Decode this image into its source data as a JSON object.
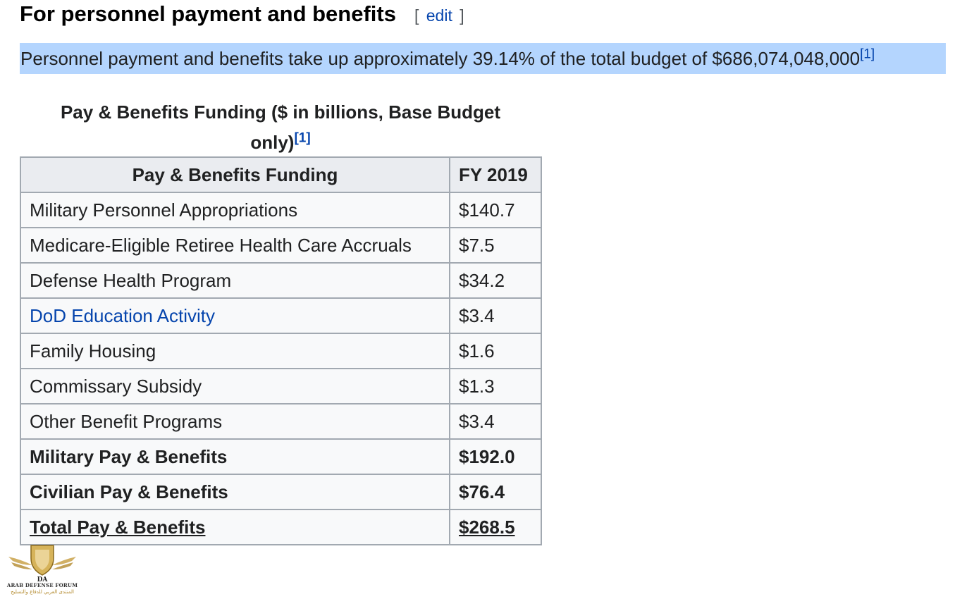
{
  "section": {
    "title": "For personnel payment and benefits",
    "edit_open": "[",
    "edit_label": "edit",
    "edit_close": "]"
  },
  "lead": {
    "text": "Personnel payment and benefits take up approximately 39.14% of the total budget of $686,074,048,000",
    "ref": "[1]"
  },
  "table": {
    "caption_line1": "Pay & Benefits Funding ($ in billions, Base Budget",
    "caption_line2": "only)",
    "caption_ref": "[1]",
    "headers": [
      "Pay & Benefits Funding",
      "FY 2019"
    ],
    "rows": [
      {
        "label": "Military Personnel Appropriations",
        "value": "$140.7"
      },
      {
        "label": "Medicare-Eligible Retiree Health Care Accruals",
        "value": "$7.5"
      },
      {
        "label": "Defense Health Program",
        "value": "$34.2"
      },
      {
        "label": "DoD Education Activity",
        "value": "$3.4"
      },
      {
        "label": "Family Housing",
        "value": "$1.6"
      },
      {
        "label": "Commissary Subsidy",
        "value": "$1.3"
      },
      {
        "label": "Other Benefit Programs",
        "value": "$3.4"
      },
      {
        "label": "Military Pay & Benefits",
        "value": "$192.0"
      },
      {
        "label": "Civilian Pay & Benefits",
        "value": "$76.4"
      },
      {
        "label": "Total Pay & Benefits",
        "value": "$268.5"
      }
    ]
  },
  "watermark": {
    "monogram": "DA",
    "forum_name": "ARAB DEFENSE FORUM",
    "arabic_name": "المنتدى العربي للدفاع والتسليح"
  },
  "colors": {
    "link": "#0645ad",
    "selection_highlight": "#b4d5fe",
    "table_border": "#a2a9b1",
    "header_bg": "#eaecf0",
    "cell_bg": "#f8f9fa"
  }
}
